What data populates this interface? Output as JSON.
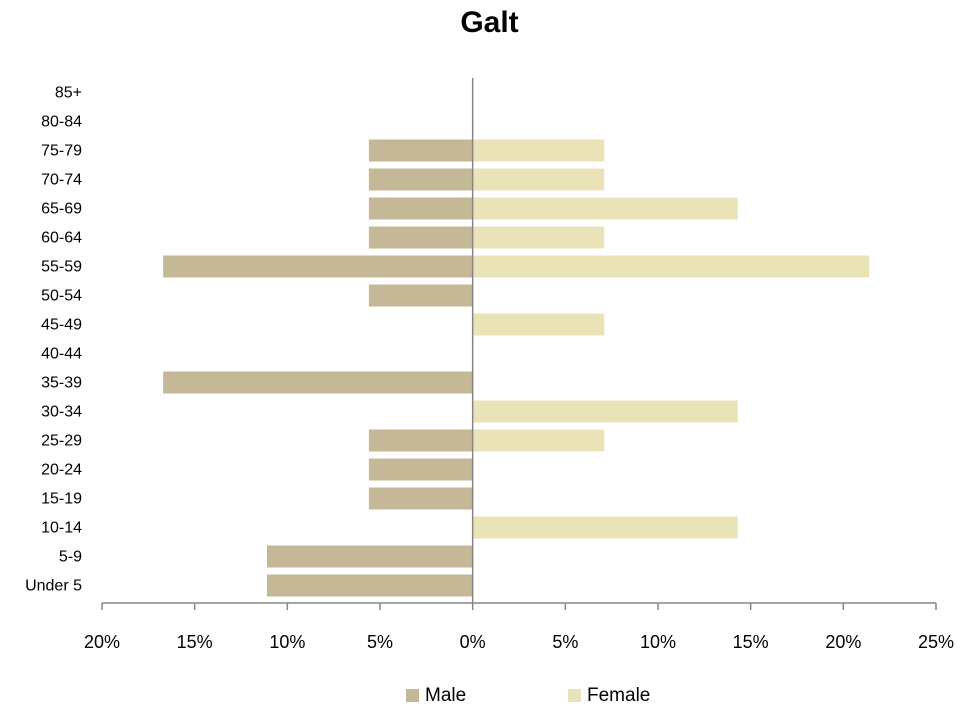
{
  "chart_data": {
    "type": "bar",
    "orientation": "horizontal",
    "layout": "population-pyramid",
    "title": "Galt",
    "categories": [
      "Under 5",
      "5-9",
      "10-14",
      "15-19",
      "20-24",
      "25-29",
      "30-34",
      "35-39",
      "40-44",
      "45-49",
      "50-54",
      "55-59",
      "60-64",
      "65-69",
      "70-74",
      "75-79",
      "80-84",
      "85+"
    ],
    "series": [
      {
        "name": "Male",
        "color": "#c4b897",
        "direction": "left",
        "values": [
          11.1,
          11.1,
          0,
          5.6,
          5.6,
          5.6,
          0,
          16.7,
          0,
          0,
          5.6,
          16.7,
          5.6,
          5.6,
          5.6,
          5.6,
          0,
          0
        ]
      },
      {
        "name": "Female",
        "color": "#ebe3b8",
        "direction": "right",
        "values": [
          0,
          0,
          14.3,
          0,
          0,
          7.1,
          14.3,
          0,
          0,
          7.1,
          0,
          21.4,
          7.1,
          14.3,
          7.1,
          7.1,
          0,
          0
        ]
      }
    ],
    "xlim": [
      -20,
      25
    ],
    "xticks": [
      -20,
      -15,
      -10,
      -5,
      0,
      5,
      10,
      15,
      20,
      25
    ],
    "xtick_labels": [
      "20%",
      "15%",
      "10%",
      "5%",
      "0%",
      "5%",
      "10%",
      "15%",
      "20%",
      "25%"
    ],
    "xlabel": "",
    "ylabel": "",
    "grid": false,
    "legend_position": "bottom"
  }
}
